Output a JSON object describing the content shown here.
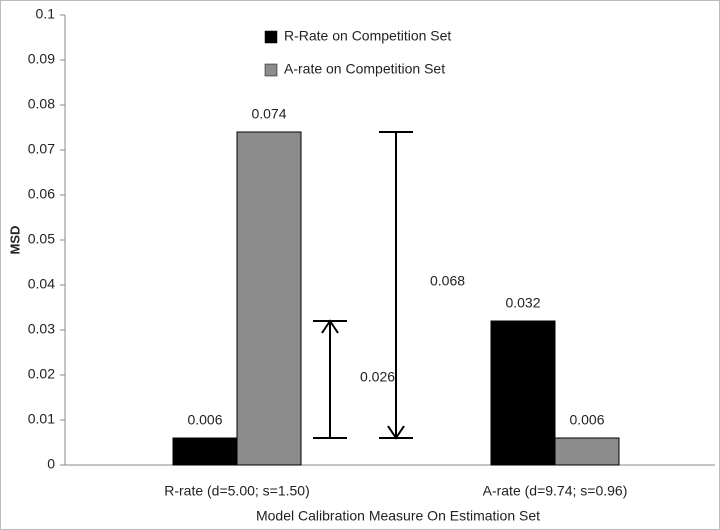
{
  "chart_data": {
    "type": "bar",
    "x_label": "Model Calibration Measure On Estimation Set",
    "y_label": "MSD",
    "categories": [
      "R-rate (d=5.00; s=1.50)",
      "A-rate (d=9.74; s=0.96)"
    ],
    "series": [
      {
        "name": "R-Rate on Competition Set",
        "color": "#000000",
        "values": [
          0.006,
          0.032
        ]
      },
      {
        "name": "A-rate on Competition Set",
        "color": "#8c8c8c",
        "values": [
          0.074,
          0.006
        ]
      }
    ],
    "ylim": [
      0,
      0.1
    ],
    "yticks": [
      0,
      0.01,
      0.02,
      0.03,
      0.04,
      0.05,
      0.06,
      0.07,
      0.08,
      0.09,
      0.1
    ],
    "legend": "top",
    "annotations": [
      {
        "value": 0.026,
        "y_from": 0.006,
        "y_to": 0.032
      },
      {
        "value": 0.068,
        "y_from": 0.006,
        "y_to": 0.074
      }
    ]
  }
}
